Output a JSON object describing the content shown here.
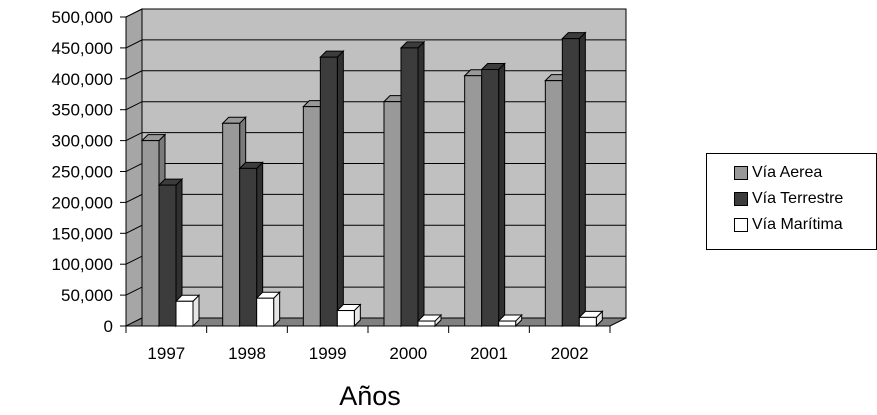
{
  "chart_data": {
    "type": "bar",
    "categories": [
      "1997",
      "1998",
      "1999",
      "2000",
      "2001",
      "2002"
    ],
    "series": [
      {
        "name": "Vía Aerea",
        "color": "#999999",
        "values": [
          300000,
          328000,
          355000,
          363000,
          405000,
          397000
        ]
      },
      {
        "name": "Vía Terrestre",
        "color": "#3c3c3c",
        "values": [
          228000,
          255000,
          435000,
          450000,
          415000,
          465000
        ]
      },
      {
        "name": "Vía Marítima",
        "color": "#ffffff",
        "values": [
          40000,
          45000,
          25000,
          8000,
          8000,
          14000
        ]
      }
    ],
    "xlabel": "Años",
    "ylabel": "",
    "ylim": [
      0,
      500000
    ],
    "yticks": [
      "500,000",
      "450,000",
      "400,000",
      "350,000",
      "300,000",
      "250,000",
      "200,000",
      "150,000",
      "100,000",
      "50,000",
      "0"
    ],
    "grid": true,
    "legend_position": "right",
    "wall_color": "#c0c0c0",
    "floor_color": "#808080"
  }
}
